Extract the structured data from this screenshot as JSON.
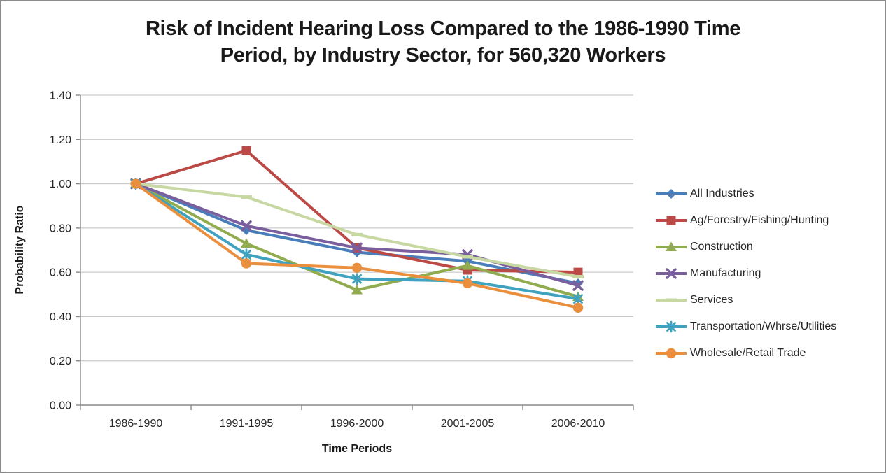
{
  "frame": {
    "border_color": "#8C8C8C",
    "background": "#FFFFFF"
  },
  "chart_data": {
    "type": "line",
    "title_lines": [
      "Risk of Incident Hearing Loss Compared to the 1986-1990 Time",
      "Period, by Industry Sector, for 560,320 Workers"
    ],
    "xlabel": "Time Periods",
    "ylabel": "Probability Ratio",
    "categories": [
      "1986-1990",
      "1991-1995",
      "1996-2000",
      "2001-2005",
      "2006-2010"
    ],
    "ylim": [
      0.0,
      1.4
    ],
    "y_step": 0.2,
    "y_tick_labels": [
      "0.00",
      "0.20",
      "0.40",
      "0.60",
      "0.80",
      "1.00",
      "1.20",
      "1.40"
    ],
    "grid": true,
    "legend_position": "right",
    "series": [
      {
        "name": "All Industries",
        "marker": "diamond",
        "color": "#4A7EBA",
        "values": [
          1.0,
          0.79,
          0.69,
          0.65,
          0.55
        ]
      },
      {
        "name": "Ag/Forestry/Fishing/Hunting",
        "marker": "square",
        "color": "#BB4A47",
        "values": [
          1.0,
          1.15,
          0.71,
          0.61,
          0.6
        ]
      },
      {
        "name": "Construction",
        "marker": "triangle",
        "color": "#90AC4E",
        "values": [
          1.0,
          0.73,
          0.52,
          0.63,
          0.49
        ]
      },
      {
        "name": "Manufacturing",
        "marker": "x",
        "color": "#7A5E9D",
        "values": [
          1.0,
          0.81,
          0.71,
          0.68,
          0.54
        ]
      },
      {
        "name": "Services",
        "marker": "dash",
        "color": "#C7D8A2",
        "values": [
          1.0,
          0.94,
          0.77,
          0.67,
          0.58
        ]
      },
      {
        "name": "Transportation/Whrse/Utilities",
        "marker": "asterisk",
        "color": "#3FA2BF",
        "values": [
          1.0,
          0.68,
          0.57,
          0.56,
          0.48
        ]
      },
      {
        "name": "Wholesale/Retail Trade",
        "marker": "circle",
        "color": "#EA8F3E",
        "values": [
          1.0,
          0.64,
          0.62,
          0.55,
          0.44
        ]
      }
    ],
    "styling": {
      "grid_color": "#BFBFBF",
      "axis_color": "#8A8A8A",
      "tick_label_color": "#262626",
      "title_color": "#1A1A1A"
    }
  }
}
